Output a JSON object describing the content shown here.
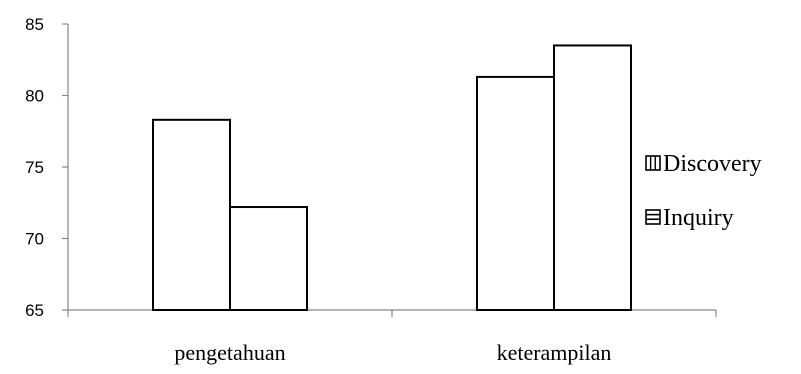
{
  "chart_data": {
    "type": "bar",
    "categories": [
      "pengetahuan",
      "keterampilan"
    ],
    "series": [
      {
        "name": "Discovery",
        "values": [
          78.3,
          81.3
        ],
        "pattern": "vertical-lines"
      },
      {
        "name": "Inquiry",
        "values": [
          72.2,
          83.5
        ],
        "pattern": "horizontal-lines"
      }
    ],
    "y_ticks": [
      "65",
      "70",
      "75",
      "80",
      "85"
    ],
    "ylim": [
      65,
      85
    ],
    "grid": false,
    "legend": "right",
    "colors": {
      "bar_fill": "#ffffff",
      "bar_stroke": "#000000",
      "axis": "#868686"
    }
  }
}
